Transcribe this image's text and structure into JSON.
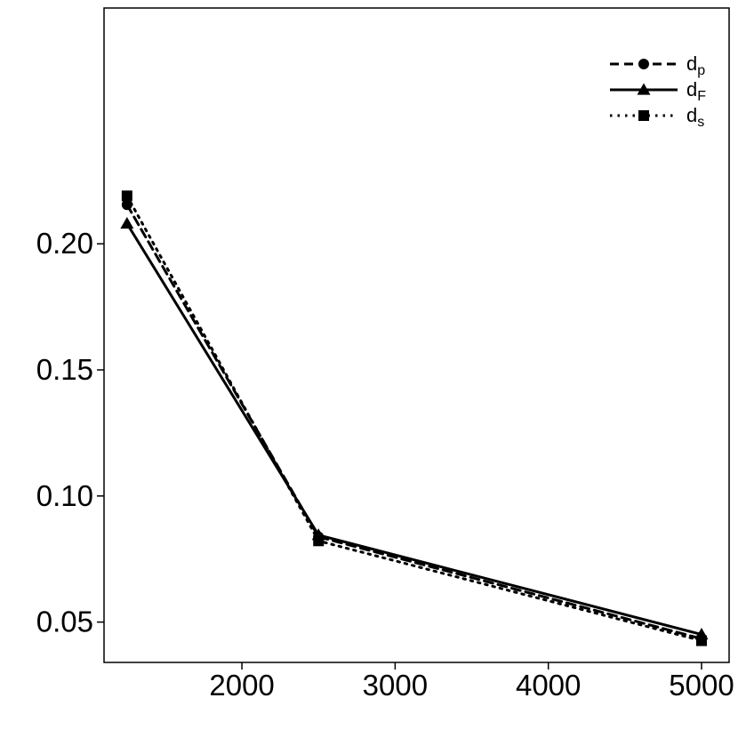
{
  "chart_data": {
    "type": "line",
    "title": "",
    "xlabel": "",
    "ylabel": "",
    "x": [
      1250,
      2500,
      5000
    ],
    "xlim": [
      1100,
      5180
    ],
    "ylim": [
      0.034,
      0.2935
    ],
    "xticks": [
      2000,
      3000,
      4000,
      5000
    ],
    "xtick_labels": [
      "2000",
      "3000",
      "4000",
      "5000"
    ],
    "yticks": [
      0.05,
      0.1,
      0.15,
      0.2
    ],
    "ytick_labels": [
      "0.05",
      "0.10",
      "0.15",
      "0.20"
    ],
    "grid": false,
    "legend_position": "top-right",
    "series": [
      {
        "name": "d",
        "subscript": "p",
        "values": [
          0.2155,
          0.0838,
          0.0434
        ],
        "line": "dashed",
        "marker": "circle",
        "color": "#000000"
      },
      {
        "name": "d",
        "subscript": "F",
        "values": [
          0.208,
          0.0845,
          0.0451
        ],
        "line": "solid",
        "marker": "triangle",
        "color": "#000000"
      },
      {
        "name": "d",
        "subscript": "s",
        "values": [
          0.219,
          0.0822,
          0.0426
        ],
        "line": "dotted",
        "marker": "square",
        "color": "#000000"
      }
    ]
  }
}
